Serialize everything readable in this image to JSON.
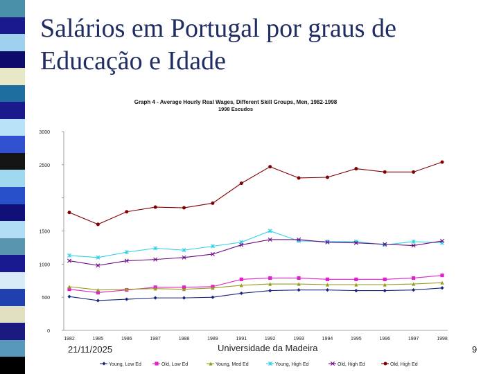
{
  "slide": {
    "title_line1": "Salários em Portugal por graus de",
    "title_line2": "Educação e Idade",
    "footer_date": "21/11/2025",
    "footer_org": "Universidade da Madeira",
    "footer_page": "9"
  },
  "colors": {
    "stripe": [
      "#4a90a8",
      "#1a1a8c",
      "#9fd0ee",
      "#0c0c6a",
      "#e8e8c8",
      "#1e6ea0",
      "#1a1a8c",
      "#b8e2f8",
      "#3050d0",
      "#141414",
      "#a0d8f0",
      "#2850c8",
      "#101078",
      "#b0dcf4",
      "#5a95b0",
      "#1a1a90",
      "#d8ecf8",
      "#2040b0",
      "#e0e0c0",
      "#1a1a80",
      "#5898b8",
      "#000000"
    ],
    "title": "#1f2d63"
  },
  "chart_data": {
    "type": "line",
    "title": "Graph 4 - Average Hourly Real Wages, Different Skill Groups, Men, 1982-1998",
    "subtitle": "1998 Escudos",
    "xlabel": "",
    "ylabel": "",
    "ylim": [
      0,
      3000
    ],
    "yticks": [
      "0",
      "500",
      "1000",
      "1500",
      "",
      "2500",
      "3000"
    ],
    "categories": [
      "1982",
      "1985",
      "1986",
      "1987",
      "1988",
      "1989",
      "1991",
      "1992",
      "1993",
      "1994",
      "1995",
      "1996",
      "1997",
      "1998"
    ],
    "series": [
      {
        "name": "Young, Low Ed",
        "color": "#1a237e",
        "marker": "diamond",
        "values": [
          510,
          450,
          470,
          490,
          490,
          500,
          560,
          600,
          610,
          610,
          600,
          600,
          610,
          640
        ]
      },
      {
        "name": "Old, Low Ed",
        "color": "#e020c8",
        "marker": "square",
        "values": [
          620,
          570,
          610,
          650,
          650,
          660,
          770,
          790,
          790,
          770,
          770,
          770,
          790,
          830
        ]
      },
      {
        "name": "Young, Med Ed",
        "color": "#9a9a20",
        "marker": "triangle",
        "values": [
          660,
          610,
          620,
          630,
          620,
          640,
          680,
          700,
          700,
          690,
          690,
          690,
          700,
          720
        ]
      },
      {
        "name": "Young, High Ed",
        "color": "#30d0e8",
        "marker": "star",
        "values": [
          1130,
          1100,
          1180,
          1240,
          1210,
          1270,
          1330,
          1500,
          1350,
          1340,
          1340,
          1290,
          1340,
          1320
        ]
      },
      {
        "name": "Old, High Ed",
        "color": "#6a0a80",
        "marker": "cross",
        "values": [
          1050,
          980,
          1050,
          1070,
          1100,
          1150,
          1290,
          1370,
          1370,
          1330,
          1320,
          1300,
          1280,
          1350
        ]
      },
      {
        "name": "Old, High Ed",
        "color": "#800000",
        "marker": "circle",
        "values": [
          1780,
          1600,
          1790,
          1860,
          1850,
          1920,
          2220,
          2470,
          2300,
          2310,
          2440,
          2390,
          2390,
          2540
        ]
      }
    ]
  }
}
